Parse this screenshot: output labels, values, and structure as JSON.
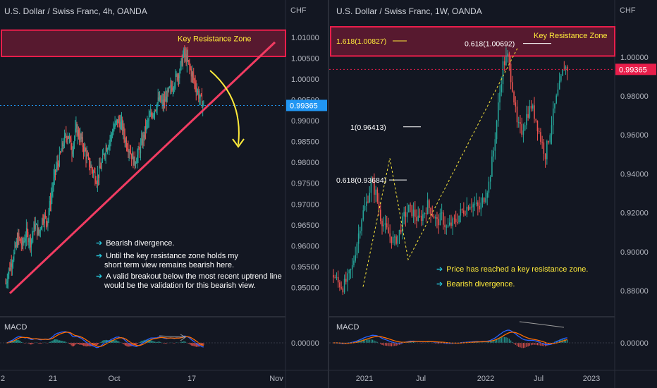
{
  "left_chart": {
    "title": "U.S. Dollar / Swiss Franc, 4h, OANDA",
    "currency": "CHF",
    "macd_label": "MACD",
    "zone_label": "Key Resistance Zone",
    "last_price": "0.99365",
    "notes": [
      {
        "lines": [
          "Bearish divergence."
        ]
      },
      {
        "lines": [
          "Until the key resistance zone holds my",
          "short term view remains bearish here."
        ]
      },
      {
        "lines": [
          "A valid breakout below the most recent uptrend line",
          "would be the validation for this bearish view."
        ]
      }
    ],
    "colors": {
      "zone": "#e91e4b",
      "trendline": "#f23c62",
      "arrow": "#ffeb3b",
      "last_price": "#2196f3"
    }
  },
  "right_chart": {
    "title": "U.S. Dollar / Swiss Franc, 1W, OANDA",
    "currency": "CHF",
    "macd_label": "MACD",
    "zone_label": "Key Resistance Zone",
    "last_price": "0.99365",
    "fib_labels": [
      "1.618(1.00827)",
      "0.618(1.00692)",
      "1(0.96413)",
      "0.618(0.93684)"
    ],
    "notes": [
      {
        "lines": [
          "Price has reached a key resistance zone."
        ]
      },
      {
        "lines": [
          "Bearish divergence."
        ]
      }
    ],
    "colors": {
      "zone": "#e91e4b",
      "fib": "#ffeb3b",
      "last_price": "#e91e4b"
    }
  },
  "chart_data": [
    {
      "type": "candlestick",
      "title": "U.S. Dollar / Swiss Franc, 4h, OANDA",
      "ylabel": "CHF",
      "ylim": [
        0.9462,
        1.0125
      ],
      "yticks": [
        "1.01000",
        "1.00500",
        "1.00000",
        "0.99500",
        "0.99000",
        "0.98500",
        "0.98000",
        "0.97500",
        "0.97000",
        "0.96500",
        "0.96000",
        "0.95500",
        "0.95000"
      ],
      "macd_ticks": [
        "0.00000"
      ],
      "xticks": [
        "2",
        "21",
        "Oct",
        "17",
        "Nov"
      ],
      "resistance_zone": [
        1.0054,
        1.0117
      ],
      "trendline": {
        "from": [
          0,
          0.9486
        ],
        "to": [
          1,
          1.0088
        ]
      },
      "series_close": [
        0.951,
        0.955,
        0.958,
        0.962,
        0.96,
        0.963,
        0.961,
        0.965,
        0.963,
        0.967,
        0.966,
        0.972,
        0.978,
        0.981,
        0.985,
        0.987,
        0.983,
        0.988,
        0.986,
        0.983,
        0.98,
        0.978,
        0.976,
        0.979,
        0.983,
        0.985,
        0.988,
        0.99,
        0.989,
        0.985,
        0.983,
        0.98,
        0.982,
        0.985,
        0.989,
        0.991,
        0.993,
        0.995,
        0.994,
        0.996,
        0.998,
        1.0,
        1.002,
        1.006,
        1.004,
        1.001,
        0.998,
        0.995,
        0.9937
      ]
    },
    {
      "type": "candlestick",
      "title": "U.S. Dollar / Swiss Franc, 1W, OANDA",
      "ylabel": "CHF",
      "ylim": [
        0.8735,
        1.0155
      ],
      "yticks": [
        "1.00000",
        "0.98000",
        "0.96000",
        "0.94000",
        "0.92000",
        "0.90000",
        "0.88000"
      ],
      "macd_ticks": [
        "0.00000"
      ],
      "xticks": [
        "2021",
        "Jul",
        "2022",
        "Jul",
        "2023"
      ],
      "resistance_zone": [
        1.0005,
        1.0155
      ],
      "fib_levels": [
        1.00827,
        1.00692,
        0.96413,
        0.93684
      ],
      "series_close": [
        0.888,
        0.884,
        0.882,
        0.886,
        0.892,
        0.905,
        0.918,
        0.925,
        0.935,
        0.93,
        0.918,
        0.912,
        0.908,
        0.905,
        0.91,
        0.918,
        0.922,
        0.92,
        0.916,
        0.919,
        0.924,
        0.92,
        0.915,
        0.918,
        0.912,
        0.914,
        0.916,
        0.92,
        0.922,
        0.925,
        0.924,
        0.922,
        0.928,
        0.935,
        0.952,
        0.975,
        0.996,
        1.0,
        0.985,
        0.965,
        0.962,
        0.97,
        0.975,
        0.968,
        0.958,
        0.95,
        0.962,
        0.975,
        0.985,
        0.995,
        0.9937
      ]
    }
  ]
}
